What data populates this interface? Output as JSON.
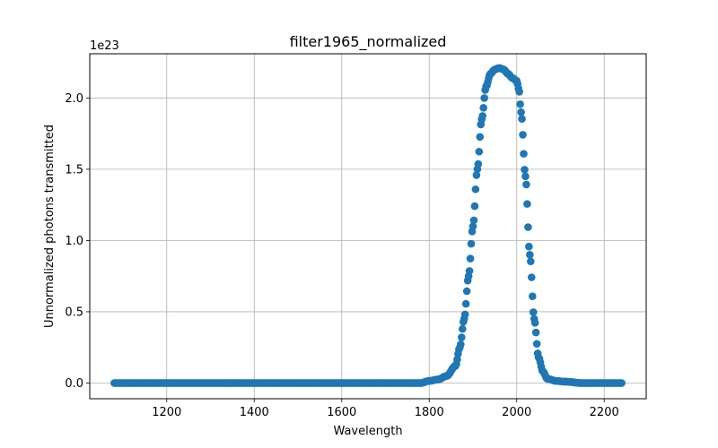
{
  "chart_data": {
    "type": "scatter",
    "title": "filter1965_normalized",
    "xlabel": "Wavelength",
    "ylabel": "Unnormalized photons transmitted",
    "y_offset_label": "1e23",
    "y_scale_exponent": 23,
    "xlim": [
      1024,
      2296
    ],
    "ylim": [
      -1.1e+22,
      2.31e+23
    ],
    "x_ticks": [
      1200,
      1400,
      1600,
      1800,
      2000,
      2200
    ],
    "x_tick_labels": [
      "1200",
      "1400",
      "1600",
      "1800",
      "2000",
      "2200"
    ],
    "y_ticks": [
      0,
      5e+22,
      1e+23,
      1.5e+23,
      2e+23
    ],
    "y_tick_labels": [
      "0.0",
      "0.5",
      "1.0",
      "1.5",
      "2.0"
    ],
    "grid": true,
    "marker_color": "#1f77b4",
    "x_range": [
      1080,
      2240
    ],
    "x_step": 2,
    "profile": [
      [
        1080,
        0
      ],
      [
        1780,
        0
      ],
      [
        1800,
        1.5e+21
      ],
      [
        1820,
        2.5e+21
      ],
      [
        1840,
        5e+21
      ],
      [
        1860,
        1.2e+22
      ],
      [
        1870,
        2.5e+22
      ],
      [
        1880,
        4.5e+22
      ],
      [
        1890,
        7.5e+22
      ],
      [
        1900,
        1.1e+23
      ],
      [
        1910,
        1.5e+23
      ],
      [
        1920,
        1.85e+23
      ],
      [
        1930,
        2.08e+23
      ],
      [
        1940,
        2.17e+23
      ],
      [
        1950,
        2.2e+23
      ],
      [
        1960,
        2.21e+23
      ],
      [
        1970,
        2.2e+23
      ],
      [
        1980,
        2.17e+23
      ],
      [
        1990,
        2.14e+23
      ],
      [
        2000,
        2.12e+23
      ],
      [
        2005,
        2.06e+23
      ],
      [
        2010,
        1.9e+23
      ],
      [
        2020,
        1.45e+23
      ],
      [
        2030,
        9e+22
      ],
      [
        2040,
        4.5e+22
      ],
      [
        2050,
        1.8e+22
      ],
      [
        2060,
        8e+21
      ],
      [
        2070,
        3e+21
      ],
      [
        2090,
        1.5e+21
      ],
      [
        2110,
        1e+21
      ],
      [
        2150,
        0
      ],
      [
        2240,
        0
      ]
    ]
  }
}
